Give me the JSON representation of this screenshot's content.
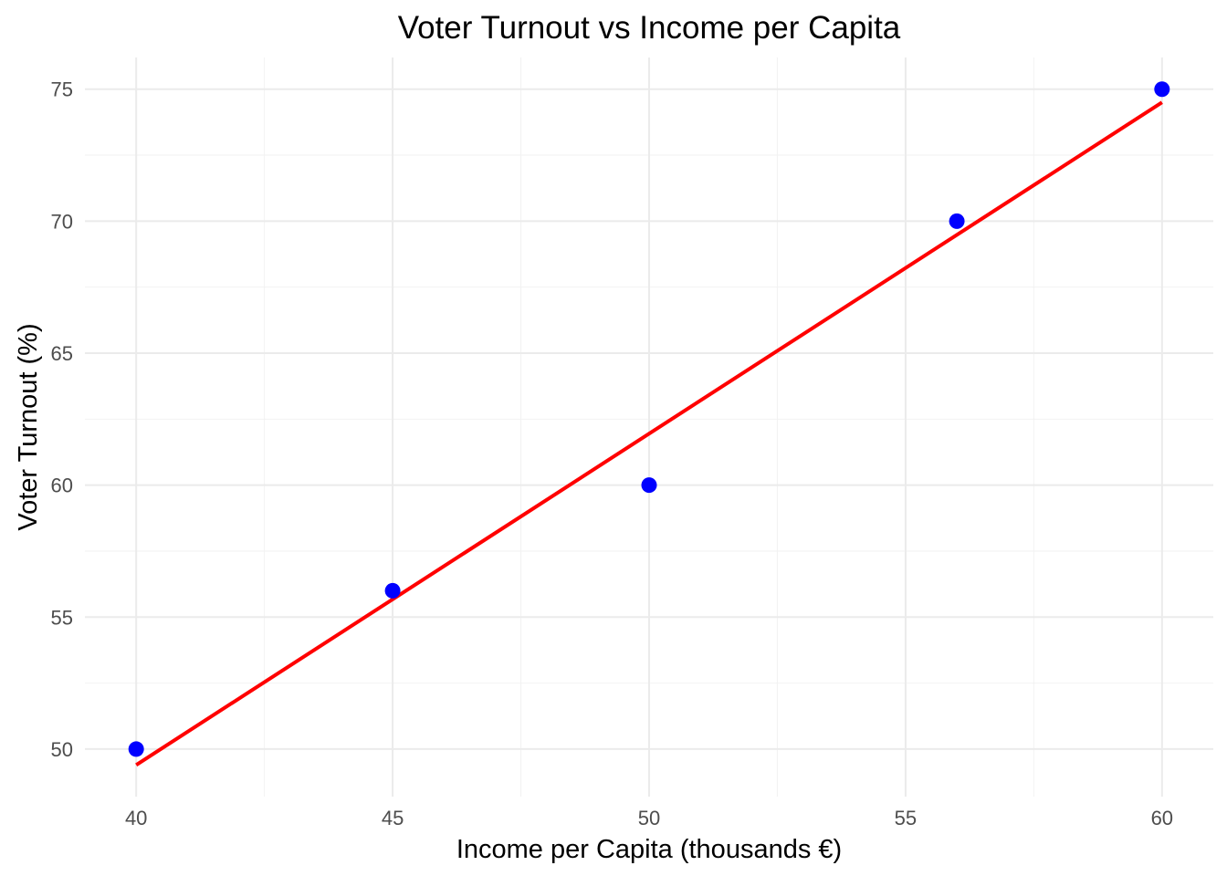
{
  "chart_data": {
    "type": "scatter",
    "title": "Voter Turnout vs Income per Capita",
    "xlabel": "Income per Capita (thousands €)",
    "ylabel": "Voter Turnout (%)",
    "xlim": [
      39,
      61
    ],
    "ylim": [
      48.2,
      76.2
    ],
    "x_ticks": [
      40,
      45,
      50,
      55,
      60
    ],
    "y_ticks": [
      50,
      55,
      60,
      65,
      70,
      75
    ],
    "x_minor_ticks": [
      42.5,
      47.5,
      52.5,
      57.5
    ],
    "y_minor_ticks": [
      52.5,
      57.5,
      62.5,
      67.5,
      72.5
    ],
    "grid": true,
    "legend": "none",
    "series": [
      {
        "type": "scatter",
        "color": "#0000ff",
        "points": [
          {
            "x": 40,
            "y": 50
          },
          {
            "x": 45,
            "y": 56
          },
          {
            "x": 50,
            "y": 60
          },
          {
            "x": 56,
            "y": 70
          },
          {
            "x": 60,
            "y": 75
          }
        ]
      },
      {
        "type": "line",
        "color": "#ff0000",
        "fit": "linear regression",
        "points": [
          {
            "x": 40,
            "y": 49.4
          },
          {
            "x": 60,
            "y": 74.5
          }
        ]
      }
    ]
  }
}
